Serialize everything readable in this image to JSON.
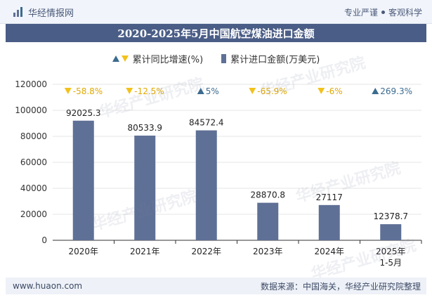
{
  "header": {
    "brand": "华经情报网",
    "slogan_left": "专业严谨",
    "slogan_right": "客观科学"
  },
  "title": "2020-2025年5月中国航空煤油进口金额",
  "legend": {
    "growth": "累计同比增速(%)",
    "amount": "累计进口金额(万美元)"
  },
  "watermark": "华经产业研究院",
  "footer": {
    "site": "www.huaon.com",
    "source": "数据来源：中国海关，华经产业研究院整理"
  },
  "colors": {
    "bar": "#5f7096",
    "up": "#3b6b8f",
    "down": "#f2c21b",
    "title_bg": "#4a5d86"
  },
  "chart_data": {
    "type": "bar",
    "categories": [
      "2020年",
      "2021年",
      "2022年",
      "2023年",
      "2024年",
      "2025年\n1-5月"
    ],
    "series": [
      {
        "name": "累计进口金额(万美元)",
        "values": [
          92025.3,
          80533.9,
          84572.4,
          28870.8,
          27117,
          12378.7
        ],
        "labels": [
          "92025.3",
          "80533.9",
          "84572.4",
          "28870.8",
          "27117",
          "12378.7"
        ]
      },
      {
        "name": "累计同比增速(%)",
        "values": [
          -58.8,
          -12.5,
          5,
          -65.9,
          -6,
          269.3
        ],
        "labels": [
          "-58.8%",
          "-12.5%",
          "5%",
          "-65.9%",
          "-6%",
          "269.3%"
        ]
      }
    ],
    "yticks": [
      "0",
      "20000",
      "40000",
      "60000",
      "80000",
      "100000",
      "120000"
    ],
    "ylim": [
      0,
      120000
    ],
    "grid": true
  }
}
